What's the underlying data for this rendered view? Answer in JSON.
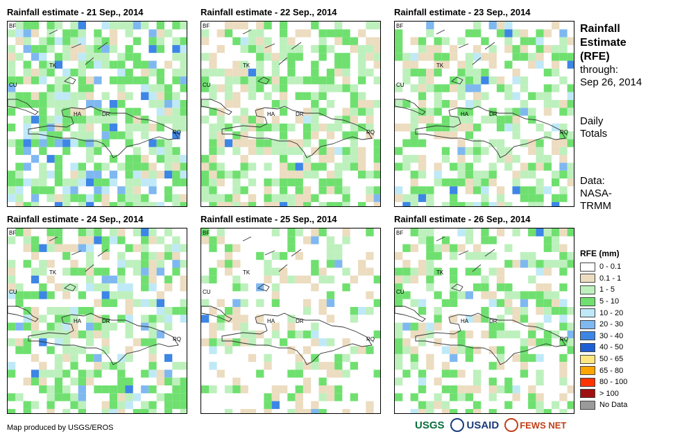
{
  "panels": [
    {
      "title": "Rainfall estimate - 21 Sep., 2014",
      "seed": 11,
      "wet": 0.55,
      "heavy": 0.14
    },
    {
      "title": "Rainfall estimate - 22 Sep., 2014",
      "seed": 23,
      "wet": 0.45,
      "heavy": 0.02
    },
    {
      "title": "Rainfall estimate - 23 Sep., 2014",
      "seed": 37,
      "wet": 0.4,
      "heavy": 0.06
    },
    {
      "title": "Rainfall estimate - 24 Sep., 2014",
      "seed": 41,
      "wet": 0.45,
      "heavy": 0.08
    },
    {
      "title": "Rainfall estimate - 25 Sep., 2014",
      "seed": 53,
      "wet": 0.22,
      "heavy": 0.02
    },
    {
      "title": "Rainfall estimate - 26 Sep., 2014",
      "seed": 67,
      "wet": 0.35,
      "heavy": 0.06
    }
  ],
  "map_labels": {
    "bf": "BF",
    "cu": "CU",
    "ha": "HA",
    "dr": "DR",
    "rq": "RQ",
    "tk": "TK"
  },
  "side": {
    "title_line1": "Rainfall",
    "title_line2": "Estimate",
    "title_line3": "(RFE)",
    "through_label": "through:",
    "through_date": "Sep 26, 2014",
    "daily_line1": "Daily",
    "daily_line2": "Totals",
    "source_line1": "Data:",
    "source_line2": "NASA-",
    "source_line3": "TRMM"
  },
  "legend": {
    "title": "RFE (mm)",
    "items": [
      {
        "label": "0 - 0.1",
        "color": "#ffffff"
      },
      {
        "label": "0.1 - 1",
        "color": "#ecdcc0"
      },
      {
        "label": "1 - 5",
        "color": "#bdf0bd"
      },
      {
        "label": "5 - 10",
        "color": "#6fe06f"
      },
      {
        "label": "10 - 20",
        "color": "#bfe9f7"
      },
      {
        "label": "20 - 30",
        "color": "#7fb8f0"
      },
      {
        "label": "30 - 40",
        "color": "#3d86e6"
      },
      {
        "label": "40 - 50",
        "color": "#1f5fd6"
      },
      {
        "label": "50 - 65",
        "color": "#ffe680"
      },
      {
        "label": "65 - 80",
        "color": "#ffa500"
      },
      {
        "label": "80 - 100",
        "color": "#ff3300"
      },
      {
        "label": "> 100",
        "color": "#a01010"
      },
      {
        "label": "No Data",
        "color": "#9a9a9a"
      }
    ]
  },
  "credit": "Map produced by USGS/EROS",
  "logos": {
    "usgs": "USGS",
    "usaid": "USAID",
    "fewsnet": "FEWS NET"
  }
}
